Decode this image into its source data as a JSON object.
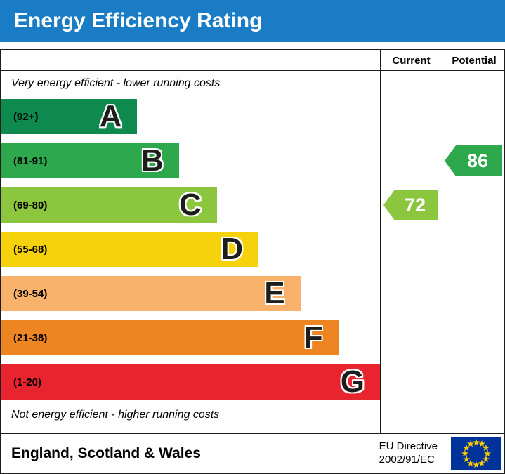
{
  "header": {
    "title": "Energy Efficiency Rating",
    "bg_color": "#1a7cc5"
  },
  "columns": {
    "current_label": "Current",
    "potential_label": "Potential"
  },
  "captions": {
    "top": "Very energy efficient - lower running costs",
    "bottom": "Not energy efficient - higher running costs"
  },
  "chart_data": {
    "type": "bar",
    "orientation": "horizontal",
    "title": "Energy Efficiency Rating",
    "bands": [
      {
        "letter": "A",
        "range": "(92+)",
        "min": 92,
        "max": 100,
        "color": "#0e8a4e",
        "width_pct": 36
      },
      {
        "letter": "B",
        "range": "(81-91)",
        "min": 81,
        "max": 91,
        "color": "#2da84d",
        "width_pct": 47
      },
      {
        "letter": "C",
        "range": "(69-80)",
        "min": 69,
        "max": 80,
        "color": "#8cc63f",
        "width_pct": 57
      },
      {
        "letter": "D",
        "range": "(55-68)",
        "min": 55,
        "max": 68,
        "color": "#f6d20c",
        "width_pct": 68
      },
      {
        "letter": "E",
        "range": "(39-54)",
        "min": 39,
        "max": 54,
        "color": "#f9b26b",
        "width_pct": 79
      },
      {
        "letter": "F",
        "range": "(21-38)",
        "min": 21,
        "max": 38,
        "color": "#ee8523",
        "width_pct": 89
      },
      {
        "letter": "G",
        "range": "(1-20)",
        "min": 1,
        "max": 20,
        "color": "#e8242e",
        "width_pct": 100
      }
    ],
    "current": {
      "value": "72",
      "band": "C",
      "color": "#8cc63f"
    },
    "potential": {
      "value": "86",
      "band": "B",
      "color": "#2da84d"
    }
  },
  "footer": {
    "region": "England, Scotland & Wales",
    "directive_line1": "EU Directive",
    "directive_line2": "2002/91/EC",
    "flag_colors": {
      "field": "#003399",
      "stars": "#ffcc00"
    }
  }
}
